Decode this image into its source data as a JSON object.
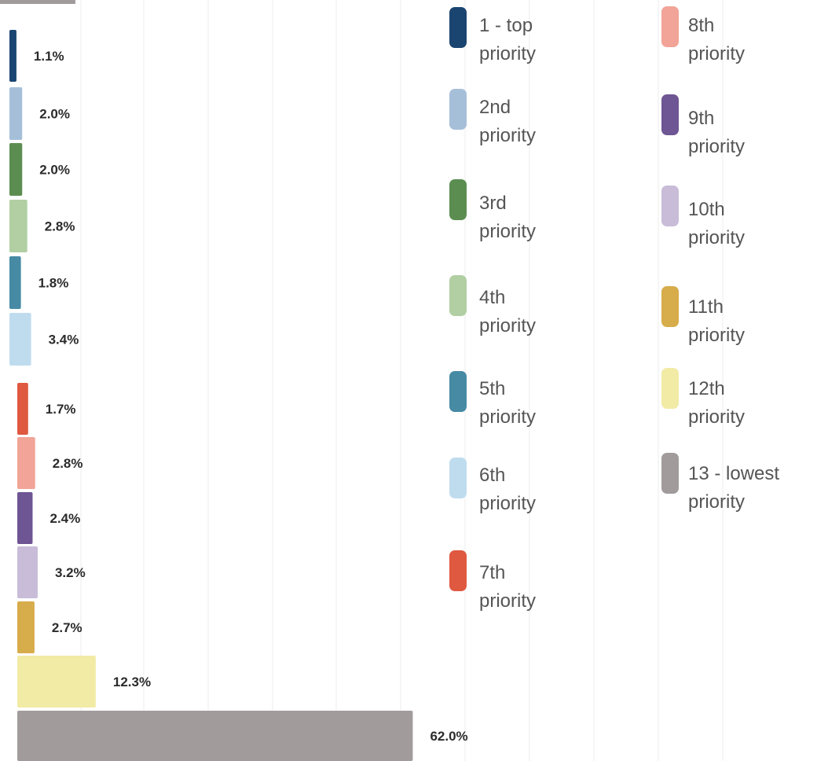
{
  "chart_data": {
    "type": "bar",
    "orientation": "horizontal",
    "grid": true,
    "legend_position": "right",
    "series": [
      {
        "name": "1 - top priority",
        "label": "1.1%",
        "value": 1.1,
        "color": "#1b4571"
      },
      {
        "name": "2nd priority",
        "label": "2.0%",
        "value": 2.0,
        "color": "#a6bfd9"
      },
      {
        "name": "3rd priority",
        "label": "2.0%",
        "value": 2.0,
        "color": "#5b8d51"
      },
      {
        "name": "4th priority",
        "label": "2.8%",
        "value": 2.8,
        "color": "#b1cfa3"
      },
      {
        "name": "5th priority",
        "label": "1.8%",
        "value": 1.8,
        "color": "#468aa4"
      },
      {
        "name": "6th priority",
        "label": "3.4%",
        "value": 3.4,
        "color": "#bfdcef"
      },
      {
        "name": "7th priority",
        "label": "1.7%",
        "value": 1.7,
        "color": "#df5840"
      },
      {
        "name": "8th priority",
        "label": "2.8%",
        "value": 2.8,
        "color": "#f1a497"
      },
      {
        "name": "9th priority",
        "label": "2.4%",
        "value": 2.4,
        "color": "#6e5593"
      },
      {
        "name": "10th priority",
        "label": "3.2%",
        "value": 3.2,
        "color": "#c8bcd8"
      },
      {
        "name": "11th priority",
        "label": "2.7%",
        "value": 2.7,
        "color": "#d7ac4a"
      },
      {
        "name": "12th priority",
        "label": "12.3%",
        "value": 12.3,
        "color": "#f1eba6"
      },
      {
        "name": "13 - lowest priority",
        "label": "62.0%",
        "value": 62.0,
        "color": "#a19c9b"
      }
    ],
    "legend": [
      {
        "line1": "1 - top",
        "line2": "priority",
        "color": "#1b4571"
      },
      {
        "line1": "2nd",
        "line2": "priority",
        "color": "#a6bfd9"
      },
      {
        "line1": "3rd",
        "line2": "priority",
        "color": "#5b8d51"
      },
      {
        "line1": "4th",
        "line2": "priority",
        "color": "#b1cfa3"
      },
      {
        "line1": "5th",
        "line2": "priority",
        "color": "#468aa4"
      },
      {
        "line1": "6th",
        "line2": "priority",
        "color": "#bfdcef"
      },
      {
        "line1": "7th",
        "line2": "priority",
        "color": "#df5840"
      },
      {
        "line1": "8th",
        "line2": "priority",
        "color": "#f1a497"
      },
      {
        "line1": "9th",
        "line2": "priority",
        "color": "#6e5593"
      },
      {
        "line1": "10th",
        "line2": "priority",
        "color": "#c8bcd8"
      },
      {
        "line1": "11th",
        "line2": "priority",
        "color": "#d7ac4a"
      },
      {
        "line1": "12th",
        "line2": "priority",
        "color": "#f1eba6"
      },
      {
        "line1": "13 - lowest",
        "line2": "priority",
        "color": "#a19c9b"
      }
    ]
  }
}
